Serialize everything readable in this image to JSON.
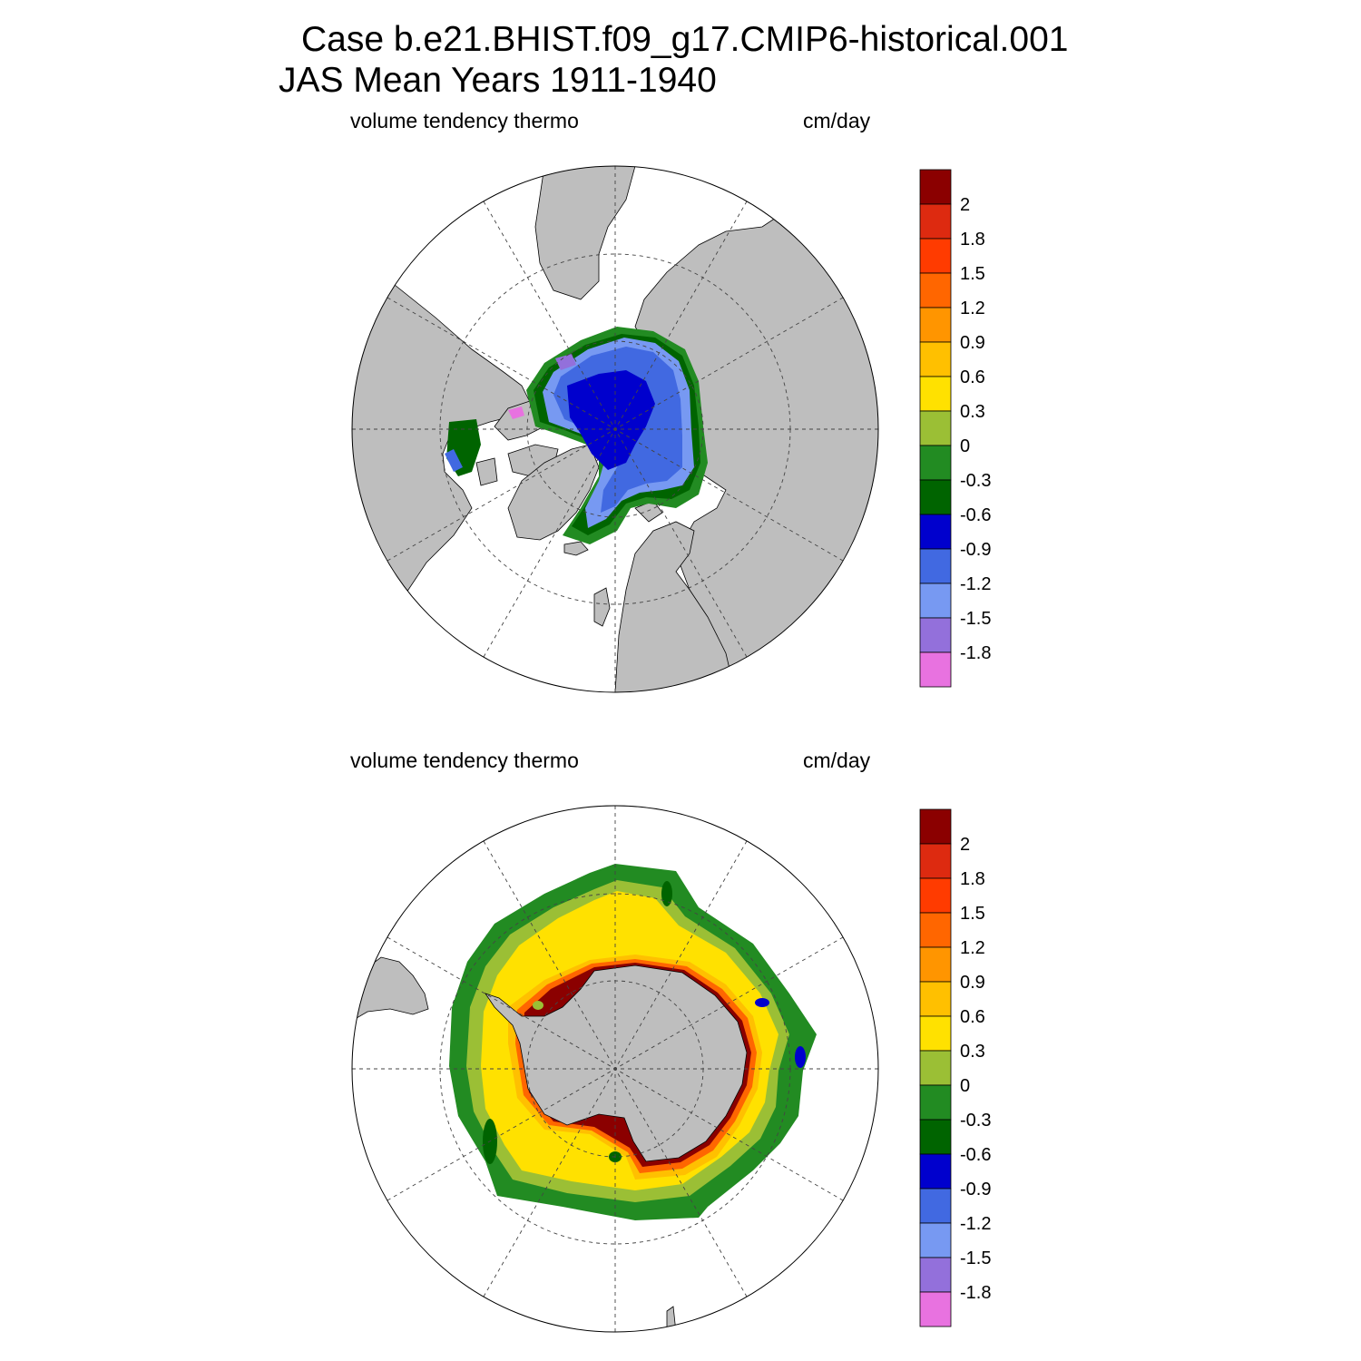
{
  "title": {
    "line1": "Case b.e21.BHIST.f09_g17.CMIP6-historical.001",
    "line2": "JAS Mean   Years 1911-1940"
  },
  "panels": [
    {
      "id": "nh",
      "variable": "volume tendency thermo",
      "units": "cm/day",
      "hemisphere": "north"
    },
    {
      "id": "sh",
      "variable": "volume tendency thermo",
      "units": "cm/day",
      "hemisphere": "south"
    }
  ],
  "colorbar": {
    "labels": [
      "2",
      "1.8",
      "1.5",
      "1.2",
      "0.9",
      "0.6",
      "0.3",
      "0",
      "-0.3",
      "-0.6",
      "-0.9",
      "-1.2",
      "-1.5",
      "-1.8"
    ],
    "colors": [
      "#8b0000",
      "#dd2a10",
      "#ff3b00",
      "#ff6600",
      "#ff9500",
      "#ffc000",
      "#ffe100",
      "#9bbf35",
      "#228b22",
      "#006400",
      "#0000cd",
      "#4169e1",
      "#7799f2",
      "#9370db",
      "#e872e0"
    ]
  },
  "style": {
    "land": "#bebebe",
    "ocean": "#ffffff"
  }
}
